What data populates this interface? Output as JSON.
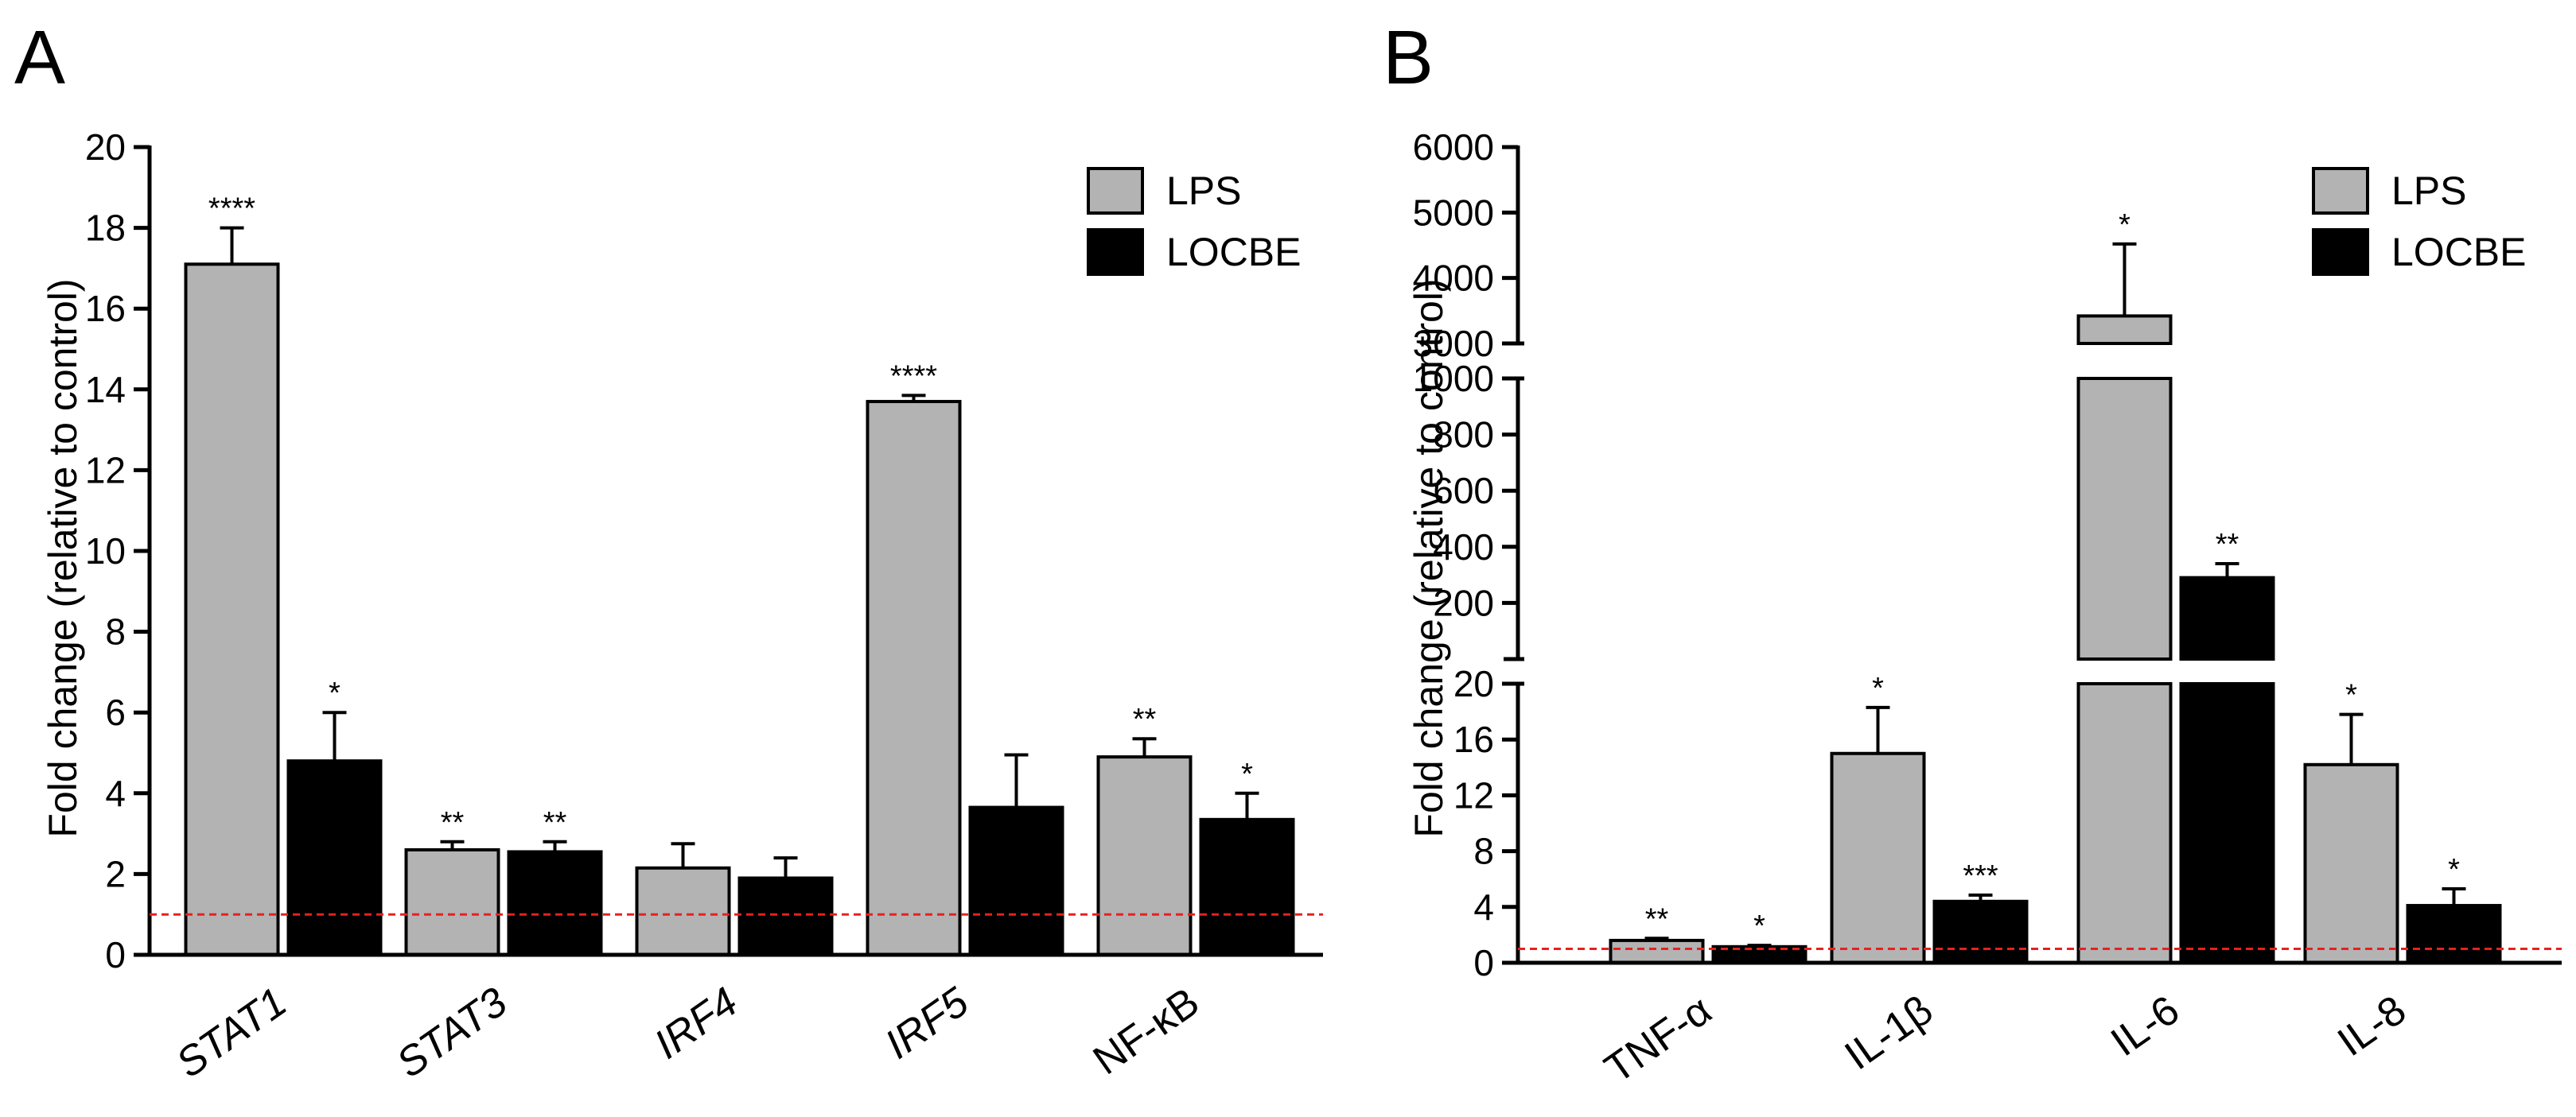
{
  "chart_data": [
    {
      "panel": "A",
      "type": "bar",
      "ylabel": "Fold change (relative to control)",
      "ylim": [
        0,
        20
      ],
      "yticks": [
        0,
        2,
        4,
        6,
        8,
        10,
        12,
        14,
        16,
        18,
        20
      ],
      "categories": [
        "STAT1",
        "STAT3",
        "IRF4",
        "IRF5",
        "NF-κB"
      ],
      "category_italic": [
        true,
        true,
        true,
        true,
        false
      ],
      "baseline": 1,
      "legend": [
        {
          "name": "LPS",
          "color": "#b3b3b3"
        },
        {
          "name": "LOCBE",
          "color": "#000000"
        }
      ],
      "series": [
        {
          "name": "LPS",
          "color": "#b3b3b3",
          "values": [
            17.1,
            2.6,
            2.15,
            13.7,
            4.9
          ],
          "errors": [
            0.9,
            0.2,
            0.6,
            0.15,
            0.45
          ],
          "sig": [
            "****",
            "**",
            "",
            "****",
            "**"
          ]
        },
        {
          "name": "LOCBE",
          "color": "#000000",
          "values": [
            4.8,
            2.55,
            1.9,
            3.65,
            3.35
          ],
          "errors": [
            1.2,
            0.25,
            0.5,
            1.3,
            0.65
          ],
          "sig": [
            "*",
            "**",
            "",
            "",
            "*"
          ]
        }
      ]
    },
    {
      "panel": "B",
      "type": "bar",
      "ylabel": "Fold change (relative to control)",
      "broken_axis": true,
      "segments": [
        {
          "range": [
            0,
            20
          ],
          "ticks": [
            0,
            4,
            8,
            12,
            16,
            20
          ]
        },
        {
          "range": [
            0,
            1000
          ],
          "ticks": [
            200,
            400,
            600,
            800,
            1000
          ]
        },
        {
          "range": [
            3000,
            6000
          ],
          "ticks": [
            3000,
            4000,
            5000,
            6000
          ]
        }
      ],
      "categories": [
        "TNF-α",
        "IL-1β",
        "IL-6",
        "IL-8"
      ],
      "baseline": 1,
      "legend": [
        {
          "name": "LPS",
          "color": "#b3b3b3"
        },
        {
          "name": "LOCBE",
          "color": "#000000"
        }
      ],
      "series": [
        {
          "name": "LPS",
          "color": "#b3b3b3",
          "values": [
            1.6,
            15,
            3420,
            14.2
          ],
          "errors": [
            0.15,
            3.3,
            1100,
            3.6
          ],
          "sig": [
            "**",
            "*",
            "*",
            "*"
          ]
        },
        {
          "name": "LOCBE",
          "color": "#000000",
          "values": [
            1.15,
            4.4,
            290,
            4.1
          ],
          "errors": [
            0.1,
            0.45,
            50,
            1.2
          ],
          "sig": [
            "*",
            "***",
            "**",
            "*"
          ]
        }
      ]
    }
  ]
}
